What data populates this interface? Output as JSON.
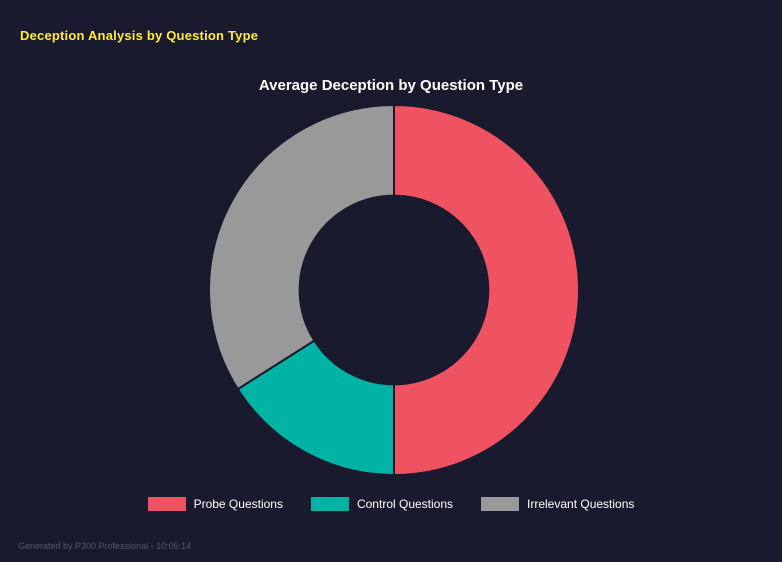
{
  "ui": {
    "colors": {
      "background": "#1a1a2e",
      "accent_yellow": "#ffeb3b",
      "text_white": "#ffffff",
      "footer_gray": "#565665"
    }
  },
  "header": {
    "title": "Deception Analysis by Question Type"
  },
  "footer": {
    "text": "Generated by P300 Professional - 10:05:14"
  },
  "chart_data": {
    "type": "pie",
    "variant": "donut",
    "title": "Average Deception by Question Type",
    "categories": [
      "Probe Questions",
      "Control Questions",
      "Irrelevant Questions"
    ],
    "values": [
      50,
      16,
      34
    ],
    "unit": "percent-share-of-circle",
    "colors": [
      "#ef5361",
      "#00b3a4",
      "#999999"
    ],
    "legend_position": "bottom",
    "inner_radius_ratio": 0.51,
    "start_angle_deg": 0,
    "direction": "clockwise"
  }
}
